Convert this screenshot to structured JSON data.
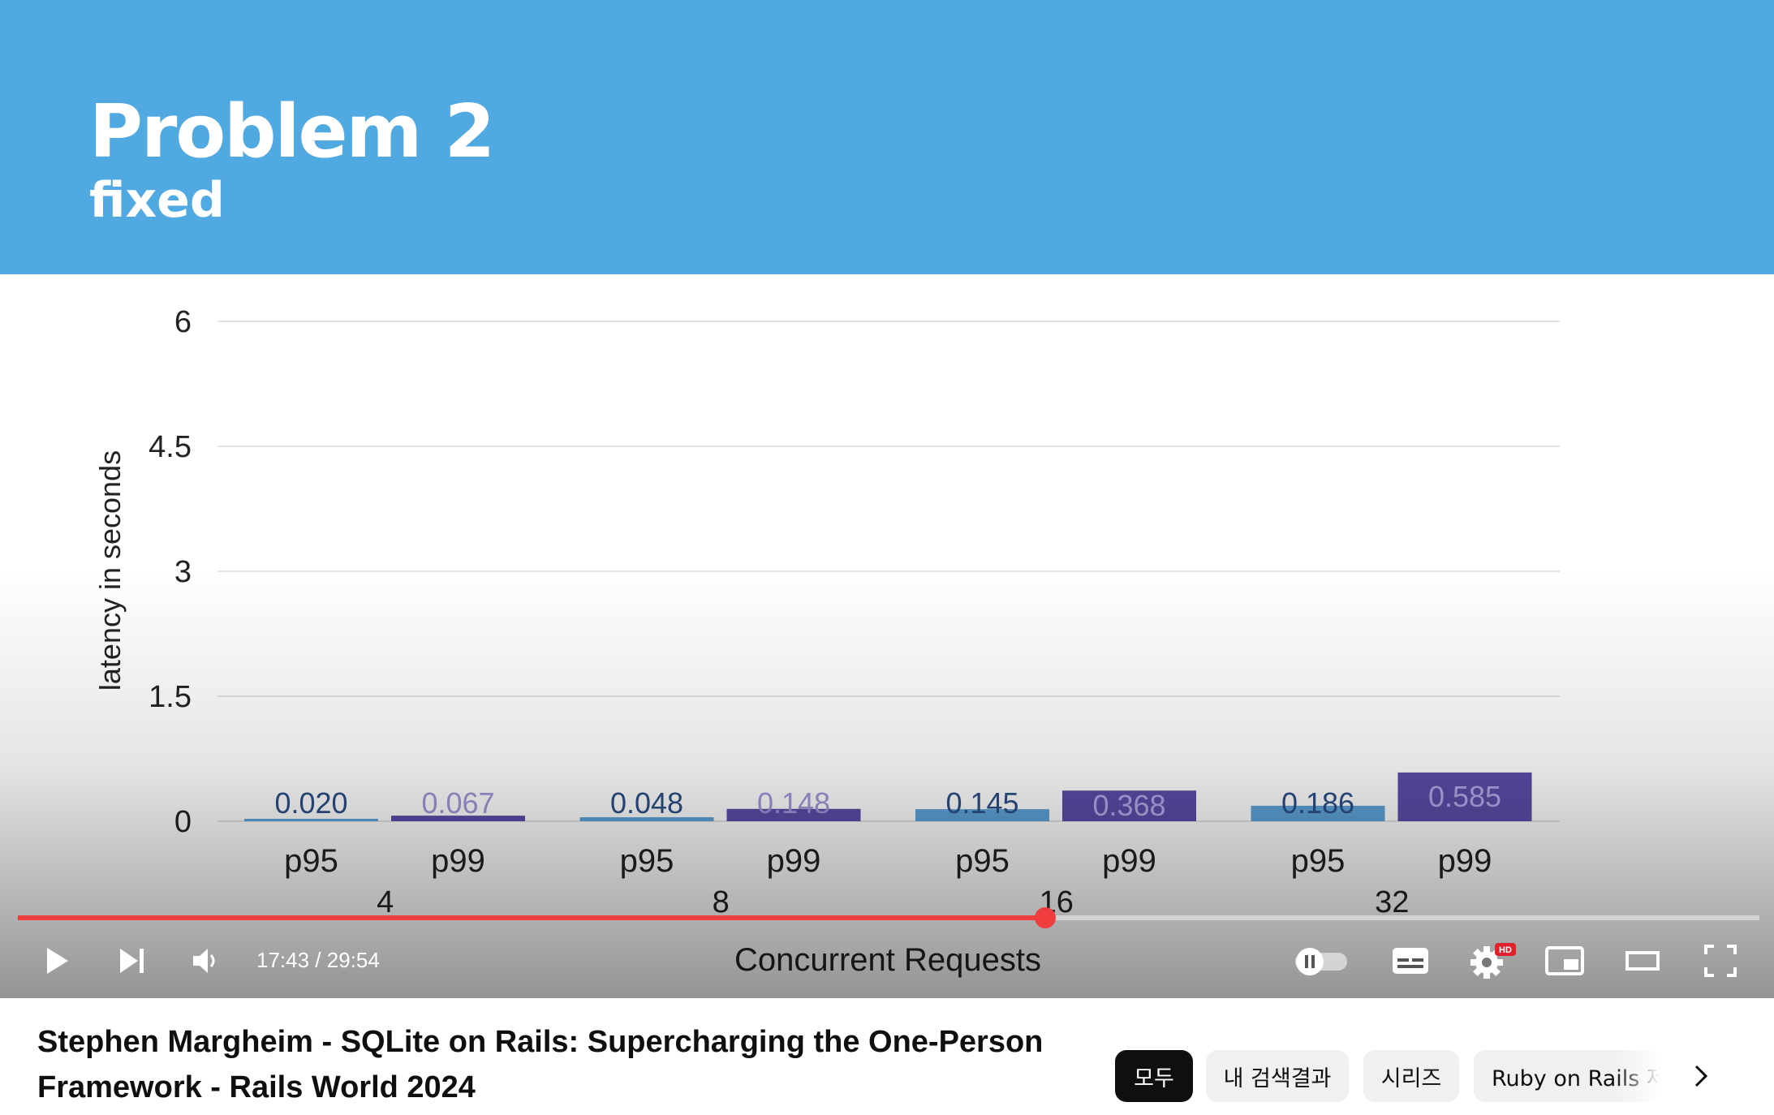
{
  "slide": {
    "title": "Problem 2",
    "subtitle": "fixed"
  },
  "chart_data": {
    "type": "bar",
    "title": "",
    "ylabel": "latency in seconds",
    "xlabel": "Concurrent Requests",
    "ylim": [
      0,
      6
    ],
    "yticks": [
      "6",
      "4.5",
      "3",
      "1.5",
      "0"
    ],
    "ytick_values": [
      6,
      4.5,
      3,
      1.5,
      0
    ],
    "grid": true,
    "groups": [
      {
        "label": "4",
        "bars": [
          {
            "category": "p95",
            "value": 0.02,
            "label": "0.020"
          },
          {
            "category": "p99",
            "value": 0.067,
            "label": "0.067"
          }
        ]
      },
      {
        "label": "8",
        "bars": [
          {
            "category": "p95",
            "value": 0.048,
            "label": "0.048"
          },
          {
            "category": "p99",
            "value": 0.148,
            "label": "0.148"
          }
        ]
      },
      {
        "label": "16",
        "bars": [
          {
            "category": "p95",
            "value": 0.145,
            "label": "0.145"
          },
          {
            "category": "p99",
            "value": 0.368,
            "label": "0.368"
          }
        ]
      },
      {
        "label": "32",
        "bars": [
          {
            "category": "p95",
            "value": 0.186,
            "label": "0.186"
          },
          {
            "category": "p99",
            "value": 0.585,
            "label": "0.585"
          }
        ]
      }
    ],
    "colors": {
      "p95": "#5ea3d9",
      "p99": "#5a4da8"
    }
  },
  "player": {
    "time_display": "17:43 / 29:54",
    "progress": 0.59,
    "hd_badge": "HD"
  },
  "video": {
    "title": "Stephen Margheim - SQLite on Rails: Supercharging the One-Person Framework - Rails World 2024"
  },
  "chips": [
    "모두",
    "내 검색결과",
    "시리즈",
    "Ruby on Rails 제"
  ]
}
